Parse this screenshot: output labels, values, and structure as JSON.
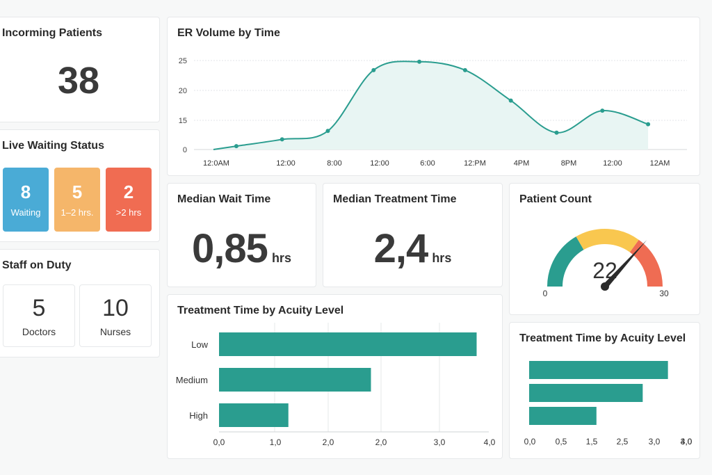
{
  "incoming": {
    "title": "Incorming Patients",
    "value": "38"
  },
  "waiting": {
    "title": "Live Waiting Status",
    "tiles": [
      {
        "value": "8",
        "label": "Waiting",
        "color": "#4aabd6"
      },
      {
        "value": "5",
        "label": "1–2 hrs.",
        "color": "#f5b66a"
      },
      {
        "value": "2",
        "label": ">2 hrs",
        "color": "#f06c52"
      }
    ]
  },
  "staff": {
    "title": "Staff on Duty",
    "items": [
      {
        "value": "5",
        "label": "Doctors"
      },
      {
        "value": "10",
        "label": "Nurses"
      }
    ]
  },
  "median_wait": {
    "title": "Median Wait Time",
    "value": "0,85",
    "unit": "hrs"
  },
  "median_treatment": {
    "title": "Median Treatment Time",
    "value": "2,4",
    "unit": "hrs"
  },
  "patient_count": {
    "title": "Patient Count",
    "value": "22",
    "min_label": "0",
    "max_label": "30",
    "min": 0,
    "max": 30,
    "bands": [
      {
        "to": 10,
        "color": "#2a9d8f"
      },
      {
        "to": 21,
        "color": "#f9c74f"
      },
      {
        "to": 30,
        "color": "#ef6c53"
      }
    ],
    "needle_value": 22
  },
  "chart_data": [
    {
      "type": "area",
      "title": "ER Volume by Time",
      "categories": [
        "12:0AM",
        "12:00",
        "8:00",
        "12:00",
        "6:00",
        "12:PM",
        "4PM",
        "8PM",
        "12:00",
        "12AM"
      ],
      "x": [
        0,
        0.5,
        1.5,
        2.5,
        3.5,
        4.5,
        5.5,
        6.5,
        7.5,
        8.5,
        9.5
      ],
      "values": [
        0,
        1,
        3,
        5.5,
        23.5,
        26,
        23.5,
        14.5,
        5,
        11.5,
        7.5
      ],
      "yticks": [
        "0",
        "15",
        "20",
        "25"
      ],
      "color": "#2a9d8f",
      "fill": "#e8f5f3"
    },
    {
      "type": "bar",
      "orientation": "horizontal",
      "title": "Treatment Time by Acuity Level",
      "categories": [
        "Low",
        "Medium",
        "High"
      ],
      "values": [
        3.9,
        2.3,
        1.05
      ],
      "xlim": [
        0,
        4
      ],
      "xticks": [
        "0,0",
        "1,0",
        "2,0",
        "2,0",
        "3,0",
        "4,0"
      ],
      "color": "#2a9d8f"
    },
    {
      "type": "bar",
      "orientation": "horizontal",
      "title": "Treatment Time by Acuity Level",
      "values": [
        3.3,
        2.7,
        1.6
      ],
      "xlim": [
        0,
        4
      ],
      "xticks": [
        "0,0",
        "0,5",
        "1,5",
        "2,5",
        "3,0",
        "3,0",
        "4,0"
      ],
      "color": "#2a9d8f"
    }
  ]
}
